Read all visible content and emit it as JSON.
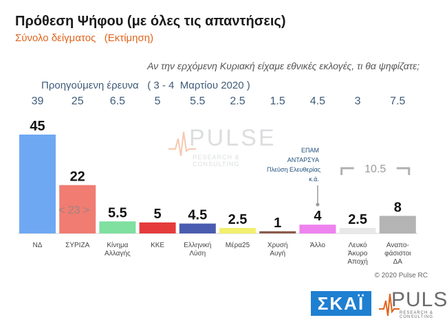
{
  "title": "Πρόθεση Ψήφου (με όλες τις απαντήσεις)",
  "subtitle": "Σύνολο δείγματος   (Εκτίμηση)",
  "question": "Αν την ερχόμενη Κυριακή είχαμε εθνικές εκλογές, τι θα ψηφίζατε;",
  "previous_survey_label": "Προηγούμενη έρευνα   ( 3 - 4  Μαρτίου 2020 )",
  "copyright": "© 2020 Pulse RC",
  "logos": {
    "broadcaster": "ΣΚΑΪ",
    "pollster": "PULSE",
    "pollster_sub": "RESEARCH & CONSULTING"
  },
  "note_lines": [
    "ΕΠΑΜ",
    "ΑΝΤΑΡΣΥΑ",
    "Πλεύση Ελευθερίας",
    "κ.ά."
  ],
  "chart_data": {
    "type": "bar",
    "categories": [
      "ΝΔ",
      "ΣΥΡΙΖΑ",
      "Κίνημα Αλλαγής",
      "ΚΚΕ",
      "Ελληνική Λύση",
      "Μέρα25",
      "Χρυσή Αυγή",
      "Άλλο",
      "Λευκό Άκυρο Αποχή",
      "Αναπο-φάσιστοι ΔΑ"
    ],
    "category_lines": [
      [
        "ΝΔ"
      ],
      [
        "ΣΥΡΙΖΑ"
      ],
      [
        "Κίνημα",
        "Αλλαγής"
      ],
      [
        "ΚΚΕ"
      ],
      [
        "Ελληνική",
        "Λύση"
      ],
      [
        "Μέρα25"
      ],
      [
        "Χρυσή",
        "Αυγή"
      ],
      [
        "Άλλο"
      ],
      [
        "Λευκό",
        "Άκυρο",
        "Αποχή"
      ],
      [
        "Αναπο-",
        "φάσιστοι",
        "ΔΑ"
      ]
    ],
    "values": [
      45,
      22,
      5.5,
      5,
      4.5,
      2.5,
      1,
      4,
      2.5,
      8
    ],
    "value_labels": [
      "45",
      "22",
      "5.5",
      "5",
      "4.5",
      "2.5",
      "1",
      "4",
      "2.5",
      "8"
    ],
    "previous_values": [
      "39",
      "25",
      "6.5",
      "5",
      "5.5",
      "2.5",
      "1.5",
      "4.5",
      "3",
      "7.5"
    ],
    "colors": [
      "#6fa8f2",
      "#f07c72",
      "#7fe0a0",
      "#e53b3b",
      "#4a5cb0",
      "#f2ef6e",
      "#8a5a4a",
      "#ee82ee",
      "#e8e8e8",
      "#b4b4b4"
    ],
    "ylim": [
      0,
      50
    ],
    "annotations": [
      {
        "text": "< 23 >",
        "category": "ΣΥΡΙΖΑ",
        "meaning": "difference ΝΔ vs ΣΥΡΙΖΑ"
      },
      {
        "text": "10.5",
        "category": "Λευκό Άκυρο Αποχή + Αναπο-φάσιστοι ΔΑ",
        "meaning": "bracketed sum"
      }
    ]
  }
}
